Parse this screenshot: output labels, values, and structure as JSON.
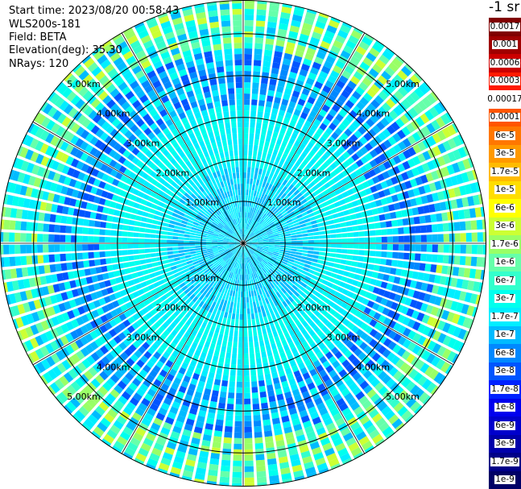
{
  "header": {
    "start_time": "Start time: 2023/08/20 00:58:43",
    "instrument": "WLS200s-181",
    "field": "Field: BETA",
    "elevation": "Elevation(deg): 35.30",
    "nrays": "NRays: 120"
  },
  "colorbar": {
    "title": "-1 sr",
    "labels": [
      "0.0017",
      "0.001",
      "0.0006",
      "0.0003",
      "0.00017",
      "0.0001",
      "6e-5",
      "3e-5",
      "1.7e-5",
      "1e-5",
      "6e-6",
      "3e-6",
      "1.7e-6",
      "1e-6",
      "6e-7",
      "3e-7",
      "1.7e-7",
      "1e-7",
      "6e-8",
      "3e-8",
      "1.7e-8",
      "1e-8",
      "6e-9",
      "3e-9",
      "1.7e-9",
      "1e-9"
    ],
    "colors": [
      "#800000",
      "#a00000",
      "#cc0000",
      "#ff1a00",
      "#ffffff",
      "#ff5500",
      "#ff7700",
      "#ff9900",
      "#ffbb00",
      "#ffdd00",
      "#ffff00",
      "#ccff33",
      "#99ff66",
      "#66ffaa",
      "#33ffcc",
      "#00ffee",
      "#00eeff",
      "#00bbff",
      "#0088ff",
      "#0055ff",
      "#0022ff",
      "#0000ee",
      "#0000cc",
      "#0000aa",
      "#000088",
      "#000066"
    ]
  },
  "chart_data": {
    "type": "ppi_scan",
    "field": "BETA",
    "units": "sr^-1",
    "elevation_deg": 35.3,
    "n_rays": 120,
    "range_rings_km": [
      1,
      2,
      3,
      4,
      5
    ],
    "ring_labels": [
      "1.00km",
      "2.00km",
      "3.00km",
      "4.00km",
      "5.00km"
    ],
    "spoke_angles_deg": [
      0,
      30,
      60,
      90,
      120,
      150,
      180,
      210,
      240,
      270,
      300,
      330
    ],
    "max_range_km": 5.8,
    "color_scale": "log",
    "value_range": [
      1e-09,
      0.0017
    ]
  }
}
